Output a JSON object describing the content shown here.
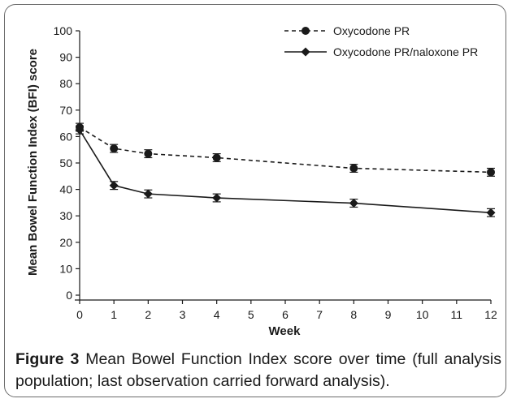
{
  "chart_data": {
    "type": "line",
    "xlabel": "Week",
    "ylabel": "Mean Bowel Function Index (BFI) score",
    "xlim": [
      0,
      12
    ],
    "ylim": [
      0,
      100
    ],
    "x_ticks": [
      "0",
      "1",
      "2",
      "3",
      "4",
      "5",
      "6",
      "7",
      "8",
      "9",
      "10",
      "11",
      "12"
    ],
    "y_ticks": [
      "0",
      "10",
      "20",
      "30",
      "40",
      "50",
      "60",
      "70",
      "80",
      "90",
      "100"
    ],
    "grid": false,
    "legend_position": "top-right",
    "series": [
      {
        "name": "Oxycodone PR",
        "line_style": "dashed",
        "marker": "circle",
        "color": "#1a1a1a",
        "x": [
          0,
          1,
          2,
          4,
          8,
          12
        ],
        "values": [
          63.5,
          55.5,
          53.5,
          52,
          48,
          46.5
        ],
        "error": [
          1.5,
          1.5,
          1.5,
          1.5,
          1.5,
          1.5
        ]
      },
      {
        "name": "Oxycodone PR/naloxone PR",
        "line_style": "solid",
        "marker": "diamond",
        "color": "#1a1a1a",
        "x": [
          0,
          1,
          2,
          4,
          8,
          12
        ],
        "values": [
          62.5,
          41.5,
          38.3,
          36.8,
          34.8,
          31.2
        ],
        "error": [
          1.5,
          1.5,
          1.5,
          1.5,
          1.5,
          1.5
        ]
      }
    ]
  },
  "caption": {
    "label": "Figure 3",
    "text": "Mean Bowel Function Index score over time (full analysis population; last observation carried forward analysis)."
  }
}
